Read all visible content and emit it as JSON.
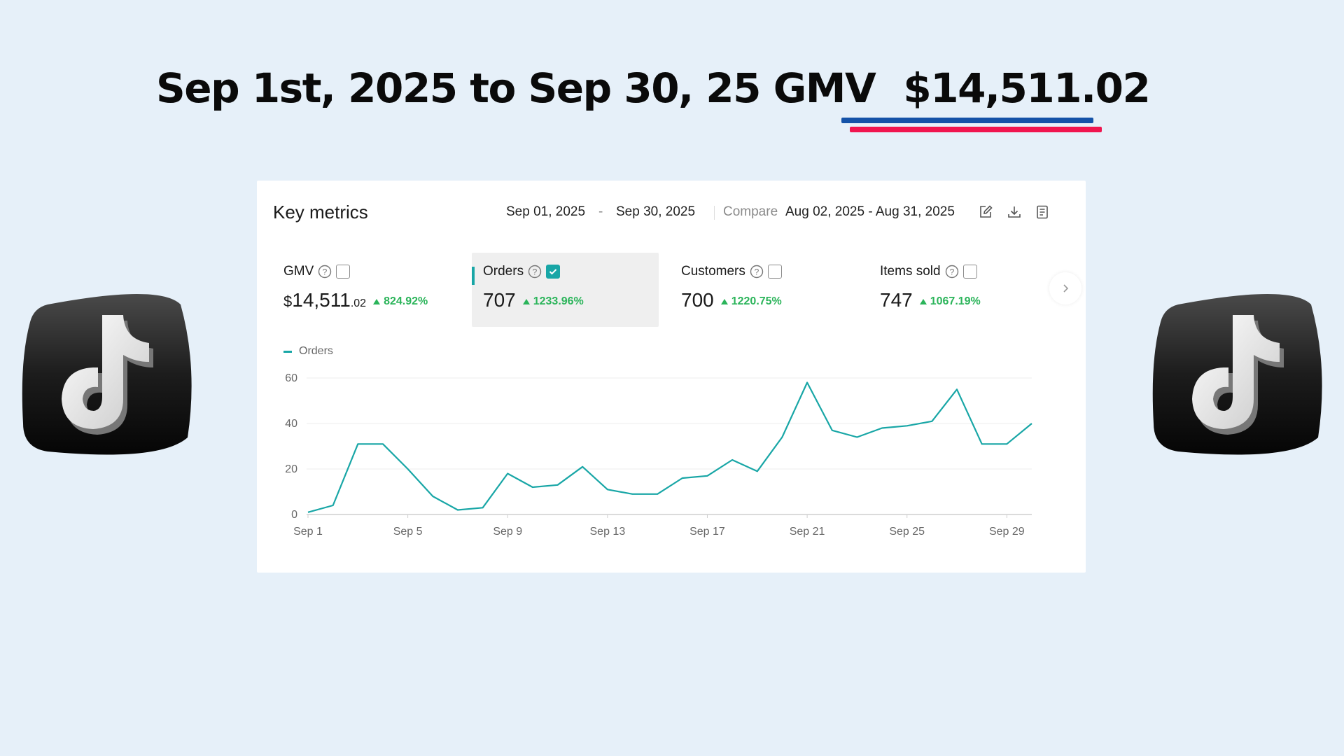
{
  "headline": {
    "text": "Sep 1st, 2025 to  Sep 30, 25 GMV",
    "amount": "$14,511.02"
  },
  "card": {
    "title": "Key metrics",
    "date_start": "Sep 01, 2025",
    "date_separator": "-",
    "date_end": "Sep 30, 2025",
    "compare_label": "Compare",
    "compare_range": "Aug 02, 2025 - Aug 31, 2025",
    "tools": [
      "edit-icon",
      "download-icon",
      "report-icon"
    ]
  },
  "metrics": [
    {
      "label": "GMV",
      "currency": "$",
      "value": "14,511",
      "cents": ".02",
      "change": "824.92%",
      "checked": false
    },
    {
      "label": "Orders",
      "value": "707",
      "change": "1233.96%",
      "checked": true
    },
    {
      "label": "Customers",
      "value": "700",
      "change": "1220.75%",
      "checked": false
    },
    {
      "label": "Items sold",
      "value": "747",
      "change": "1067.19%",
      "checked": false
    }
  ],
  "colors": {
    "accent": "#18a6a6",
    "positive": "#2bb45a",
    "underline_blue": "#1452a8",
    "underline_red": "#f0154f",
    "background": "#e6f0f9"
  },
  "chart_data": {
    "type": "line",
    "legend": [
      "Orders"
    ],
    "x_tick_labels": [
      "Sep 1",
      "Sep 5",
      "Sep 9",
      "Sep 13",
      "Sep 17",
      "Sep 21",
      "Sep 25",
      "Sep 29"
    ],
    "y_tick_labels": [
      "0",
      "20",
      "40",
      "60"
    ],
    "ylim": [
      0,
      60
    ],
    "grid": true,
    "series": [
      {
        "name": "Orders",
        "x": [
          1,
          2,
          3,
          4,
          5,
          6,
          7,
          8,
          9,
          10,
          11,
          12,
          13,
          14,
          15,
          16,
          17,
          18,
          19,
          20,
          21,
          22,
          23,
          24,
          25,
          26,
          27,
          28,
          29,
          30
        ],
        "values": [
          1,
          4,
          31,
          31,
          20,
          8,
          2,
          3,
          18,
          12,
          13,
          21,
          11,
          9,
          9,
          16,
          17,
          24,
          19,
          34,
          58,
          37,
          34,
          38,
          39,
          41,
          55,
          31,
          31,
          40
        ]
      }
    ]
  }
}
